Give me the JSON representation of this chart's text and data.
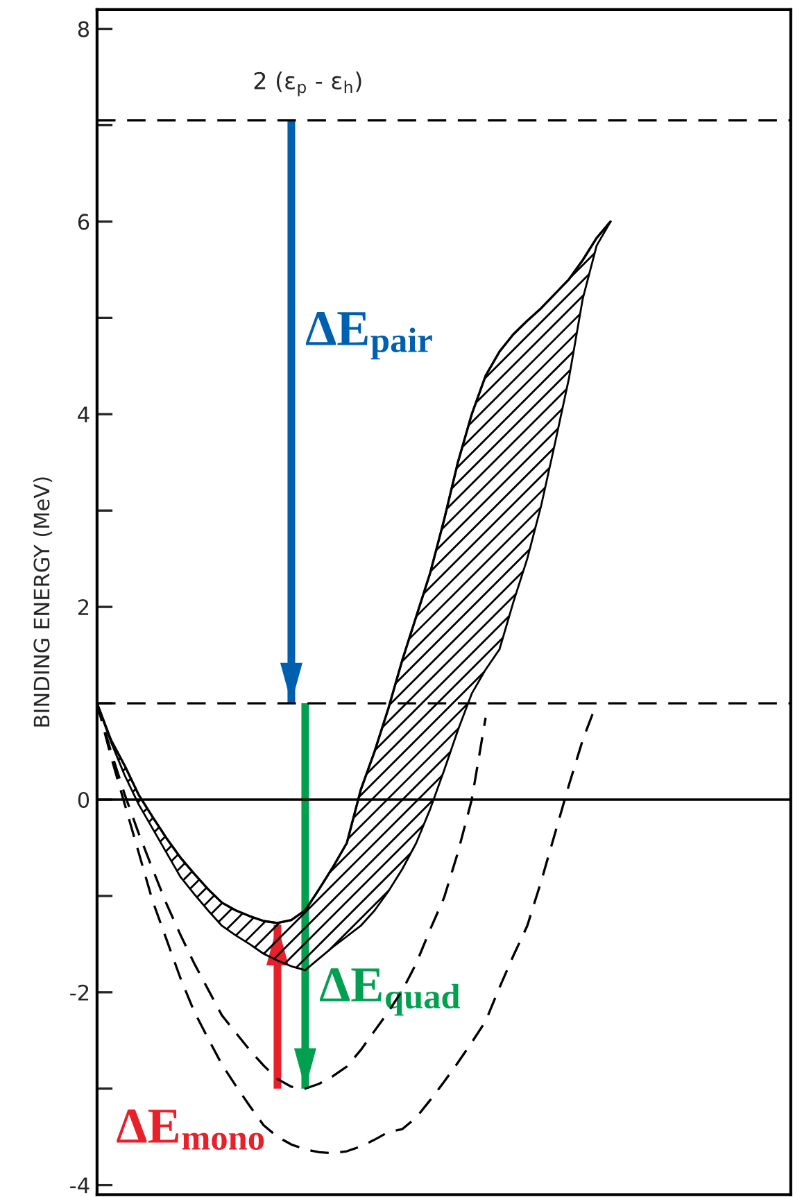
{
  "chart_data": {
    "type": "line",
    "ylabel": "BINDING ENERGY (MeV)",
    "categories": [
      null,
      null,
      null,
      null,
      null,
      null,
      null,
      null,
      null,
      null,
      null,
      null,
      null,
      null,
      null,
      null,
      null,
      null,
      null,
      null,
      null,
      null,
      null,
      null,
      null,
      null,
      null,
      null,
      null,
      null,
      null,
      null,
      null,
      null,
      null,
      null,
      null,
      null
    ],
    "ylim": [
      -4.1,
      8.2
    ],
    "yticks": [
      -4,
      {
        "value": -3,
        "label": null
      },
      -2,
      {
        "value": -1,
        "label": null
      },
      0,
      {
        "value": 1,
        "label": null
      },
      2,
      {
        "value": 3,
        "label": null
      },
      4,
      {
        "value": 5,
        "label": null
      },
      6,
      {
        "value": 7,
        "label": null
      },
      8
    ],
    "tick_labels": "y",
    "grid": false,
    "legend": false,
    "series": [
      {
        "color": "#000000",
        "values": [
          1.0,
          0.62,
          0.35,
          0.05,
          -0.18,
          -0.4,
          -0.6,
          -0.77,
          -0.93,
          -1.07,
          -1.15,
          -1.21,
          -1.26,
          -1.28,
          -1.25,
          -1.15,
          -0.93,
          -0.7,
          -0.45,
          0.1,
          0.5,
          0.95,
          1.45,
          1.9,
          2.35,
          2.9,
          3.5,
          4.0,
          4.4,
          4.65,
          4.83,
          4.97,
          5.1,
          5.25,
          5.4,
          5.6,
          5.83,
          6.0
        ],
        "upper": [
          1.0,
          0.62,
          0.35,
          0.05,
          -0.18,
          -0.4,
          -0.6,
          -0.77,
          -0.93,
          -1.07,
          -1.15,
          -1.21,
          -1.26,
          -1.28,
          -1.25,
          -1.15,
          -0.93,
          -0.7,
          -0.45,
          0.1,
          0.5,
          0.95,
          1.45,
          1.9,
          2.35,
          2.9,
          3.5,
          4.0,
          4.4,
          4.65,
          4.83,
          4.97,
          5.1,
          5.25,
          5.4,
          5.6,
          5.83,
          6.0
        ],
        "lower": [
          1.0,
          0.6,
          0.25,
          -0.05,
          -0.3,
          -0.55,
          -0.8,
          -0.98,
          -1.15,
          -1.31,
          -1.41,
          -1.5,
          -1.6,
          -1.67,
          -1.73,
          -1.77,
          -1.65,
          -1.53,
          -1.42,
          -1.31,
          -1.15,
          -0.95,
          -0.72,
          -0.45,
          -0.1,
          0.3,
          0.72,
          1.1,
          1.35,
          1.56,
          2.05,
          2.5,
          3.05,
          3.7,
          4.37,
          5.2,
          5.75,
          6.0
        ]
      },
      {
        "color": "#000000",
        "line_style": "dashed",
        "values": [
          1.0,
          0.5,
          0.05,
          -0.35,
          -0.72,
          -1.08,
          -1.4,
          -1.7,
          -1.97,
          -2.24,
          -2.42,
          -2.6,
          -2.76,
          -2.9,
          -2.98,
          -3.0,
          -2.95,
          -2.87,
          -2.77,
          -2.6,
          -2.4,
          -2.2,
          -1.98,
          -1.7,
          -1.35,
          -1.02,
          -0.55,
          0,
          0.85,
          null,
          null,
          null,
          null,
          null,
          null,
          null,
          null,
          null
        ]
      },
      {
        "color": "#000000",
        "line_style": "dashed",
        "values": [
          1.0,
          0.45,
          -0.05,
          -0.55,
          -1.05,
          -1.45,
          -1.85,
          -2.2,
          -2.48,
          -2.75,
          -2.97,
          -3.18,
          -3.38,
          -3.5,
          -3.58,
          -3.63,
          -3.66,
          -3.67,
          -3.65,
          -3.6,
          -3.53,
          -3.45,
          -3.42,
          -3.3,
          -3.12,
          -2.93,
          -2.73,
          -2.52,
          -2.3,
          -1.95,
          -1.62,
          -1.31,
          -0.85,
          -0.35,
          0.15,
          0.62,
          1.0,
          null
        ]
      },
      {
        "type": "bar",
        "color": "#0060b0",
        "values": [
          null,
          null,
          null,
          null,
          null,
          null,
          null,
          null,
          null,
          null,
          null,
          null,
          null,
          null,
          -6.05,
          null,
          null,
          null,
          null,
          null,
          null,
          null,
          null,
          null,
          null,
          null,
          null,
          null,
          null,
          null,
          null,
          null,
          null,
          null,
          null,
          null,
          null,
          null
        ],
        "base": [
          null,
          null,
          null,
          null,
          null,
          null,
          null,
          null,
          null,
          null,
          null,
          null,
          null,
          null,
          7.05,
          null,
          null,
          null,
          null,
          null,
          null,
          null,
          null,
          null,
          null,
          null,
          null,
          null,
          null,
          null,
          null,
          null,
          null,
          null,
          null,
          null,
          null,
          null
        ]
      },
      {
        "type": "bar",
        "color": "#00a050",
        "values": [
          null,
          null,
          null,
          null,
          null,
          null,
          null,
          null,
          null,
          null,
          null,
          null,
          null,
          null,
          null,
          -4.0,
          null,
          null,
          null,
          null,
          null,
          null,
          null,
          null,
          null,
          null,
          null,
          null,
          null,
          null,
          null,
          null,
          null,
          null,
          null,
          null,
          null,
          null
        ],
        "base": [
          null,
          null,
          null,
          null,
          null,
          null,
          null,
          null,
          null,
          null,
          null,
          null,
          null,
          null,
          null,
          1.0,
          null,
          null,
          null,
          null,
          null,
          null,
          null,
          null,
          null,
          null,
          null,
          null,
          null,
          null,
          null,
          null,
          null,
          null,
          null,
          null,
          null,
          null
        ]
      },
      {
        "type": "bar",
        "color": "#e8202a",
        "values": [
          null,
          null,
          null,
          null,
          null,
          null,
          null,
          null,
          null,
          null,
          null,
          null,
          null,
          1.7,
          null,
          null,
          null,
          null,
          null,
          null,
          null,
          null,
          null,
          null,
          null,
          null,
          null,
          null,
          null,
          null,
          null,
          null,
          null,
          null,
          null,
          null,
          null,
          null
        ],
        "base": [
          null,
          null,
          null,
          null,
          null,
          null,
          null,
          null,
          null,
          null,
          null,
          null,
          null,
          -3.0,
          null,
          null,
          null,
          null,
          null,
          null,
          null,
          null,
          null,
          null,
          null,
          null,
          null,
          null,
          null,
          null,
          null,
          null,
          null,
          null,
          null,
          null,
          null,
          null
        ]
      }
    ],
    "ref_lines": [
      {
        "axis": "y",
        "value": 7.05,
        "label": "2 (ε$_{p}$ - ε$_{h}$)",
        "line_style": "dashed",
        "color": "#000000"
      },
      {
        "axis": "y",
        "value": 1.0,
        "line_style": "dashed",
        "color": "#000000"
      },
      {
        "axis": "y",
        "value": 0,
        "line_style": "solid",
        "color": "#000000"
      }
    ],
    "annotations": [
      "ΔE$_{pair}$",
      "ΔE$_{quad}$",
      "ΔE$_{mono}$"
    ]
  }
}
